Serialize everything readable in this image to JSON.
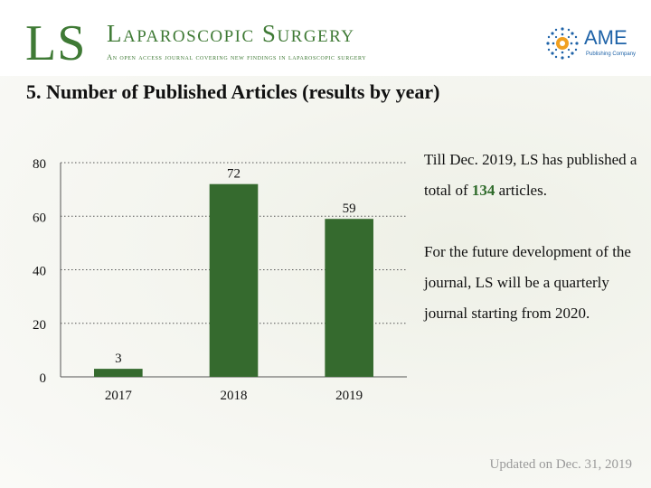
{
  "header": {
    "logo": "LS",
    "journal_title": "Laparoscopic Surgery",
    "journal_subtitle": "An open access journal covering new findings in laparoscopic surgery",
    "publisher_name": "AME",
    "publisher_sub": "Publishing Company",
    "publisher_icon": "dotted-sphere-icon"
  },
  "section_heading": "5. Number of Published Articles (results by year)",
  "chart_data": {
    "type": "bar",
    "categories": [
      "2017",
      "2018",
      "2019"
    ],
    "values": [
      3,
      72,
      59
    ],
    "data_labels": [
      "3",
      "72",
      "59"
    ],
    "title": "",
    "xlabel": "",
    "ylabel": "",
    "ylim": [
      0,
      80
    ],
    "yticks": [
      0,
      20,
      40,
      60,
      80
    ],
    "grid": "horizontal dotted",
    "bar_color": "#356a2e"
  },
  "summary": {
    "p1_before": "Till Dec. 2019, LS has published a total of",
    "p1_total": "134",
    "p1_after": "articles.",
    "p2": "For the future development of the journal, LS will be a quarterly journal starting from 2020."
  },
  "footer": {
    "updated": "Updated on Dec. 31, 2019"
  },
  "colors": {
    "brand_green": "#3f7a35",
    "bar": "#356a2e",
    "publisher_blue": "#1f63a8"
  }
}
